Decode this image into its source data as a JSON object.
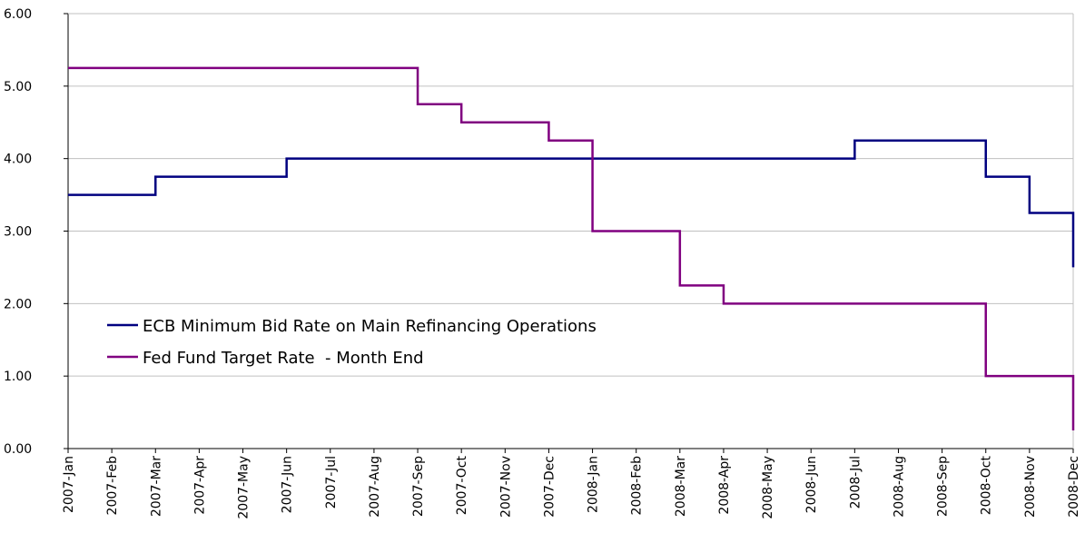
{
  "chart_data": {
    "type": "line",
    "step": "after",
    "categories": [
      "2007-Jan",
      "2007-Feb",
      "2007-Mar",
      "2007-Apr",
      "2007-May",
      "2007-Jun",
      "2007-Jul",
      "2007-Aug",
      "2007-Sep",
      "2007-Oct",
      "2007-Nov",
      "2007-Dec",
      "2008-Jan",
      "2008-Feb",
      "2008-Mar",
      "2008-Apr",
      "2008-May",
      "2008-Jun",
      "2008-Jul",
      "2008-Aug",
      "2008-Sep",
      "2008-Oct",
      "2008-Nov",
      "2008-Dec"
    ],
    "series": [
      {
        "name": "ECB Minimum Bid Rate on Main Refinancing Operations",
        "color": "#000080",
        "values": [
          3.5,
          3.5,
          3.75,
          3.75,
          3.75,
          4,
          4,
          4,
          4,
          4,
          4,
          4,
          4,
          4,
          4,
          4,
          4,
          4,
          4.25,
          4.25,
          4.25,
          3.75,
          3.25,
          2.5
        ]
      },
      {
        "name": "Fed Fund Target Rate  - Month End",
        "color": "#800080",
        "values": [
          5.25,
          5.25,
          5.25,
          5.25,
          5.25,
          5.25,
          5.25,
          5.25,
          4.75,
          4.5,
          4.5,
          4.25,
          3,
          3,
          2.25,
          2,
          2,
          2,
          2,
          2,
          2,
          1,
          1,
          0.25
        ]
      }
    ],
    "ylim": [
      0,
      6
    ],
    "yticks": [
      {
        "value": 0,
        "label": "0.00"
      },
      {
        "value": 1,
        "label": "1.00"
      },
      {
        "value": 2,
        "label": "2.00"
      },
      {
        "value": 3,
        "label": "3.00"
      },
      {
        "value": 4,
        "label": "4.00"
      },
      {
        "value": 5,
        "label": "5.00"
      },
      {
        "value": 6,
        "label": "6.00"
      }
    ],
    "grid": true,
    "legend": "left"
  }
}
